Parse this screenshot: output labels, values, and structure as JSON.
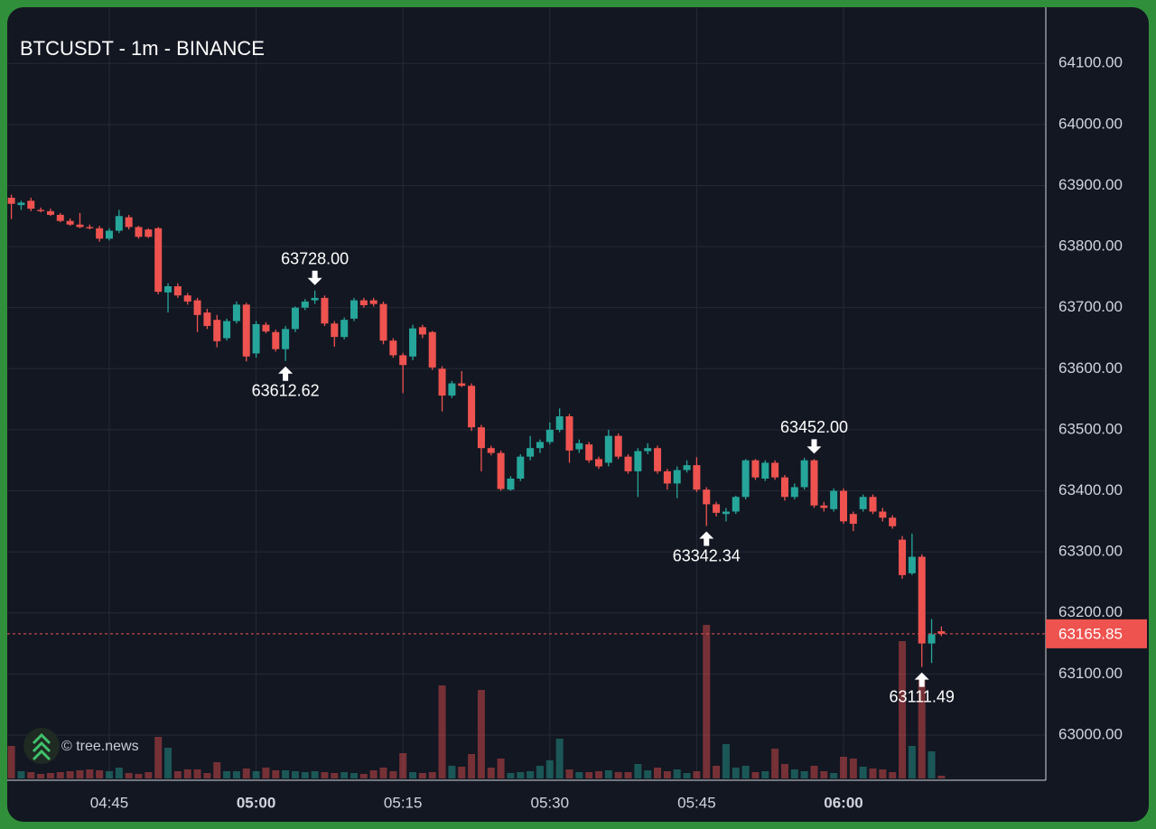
{
  "chart_data": {
    "type": "candlestick",
    "title": "BTCUSDT - 1m - BINANCE",
    "watermark": "© tree.news",
    "x": [
      "04:35",
      "04:36",
      "04:37",
      "04:38",
      "04:39",
      "04:40",
      "04:41",
      "04:42",
      "04:43",
      "04:44",
      "04:45",
      "04:46",
      "04:47",
      "04:48",
      "04:49",
      "04:50",
      "04:51",
      "04:52",
      "04:53",
      "04:54",
      "04:55",
      "04:56",
      "04:57",
      "04:58",
      "04:59",
      "05:00",
      "05:01",
      "05:02",
      "05:03",
      "05:04",
      "05:05",
      "05:06",
      "05:07",
      "05:08",
      "05:09",
      "05:10",
      "05:11",
      "05:12",
      "05:13",
      "05:14",
      "05:15",
      "05:16",
      "05:17",
      "05:18",
      "05:19",
      "05:20",
      "05:21",
      "05:22",
      "05:23",
      "05:24",
      "05:25",
      "05:26",
      "05:27",
      "05:28",
      "05:29",
      "05:30",
      "05:31",
      "05:32",
      "05:33",
      "05:34",
      "05:35",
      "05:36",
      "05:37",
      "05:38",
      "05:39",
      "05:40",
      "05:41",
      "05:42",
      "05:43",
      "05:44",
      "05:45",
      "05:46",
      "05:47",
      "05:48",
      "05:49",
      "05:50",
      "05:51",
      "05:52",
      "05:53",
      "05:54",
      "05:55",
      "05:56",
      "05:57",
      "05:58",
      "05:59",
      "06:00",
      "06:01",
      "06:02",
      "06:03",
      "06:04",
      "06:05",
      "06:06",
      "06:07",
      "06:08",
      "06:09",
      "06:10"
    ],
    "open": [
      63880,
      63868,
      63875,
      63860,
      63858,
      63852,
      63842,
      63836,
      63832,
      63830,
      63813,
      63826,
      63848,
      63832,
      63828,
      63830,
      63725,
      63735,
      63720,
      63712,
      63692,
      63680,
      63650,
      63678,
      63705,
      63625,
      63672,
      63660,
      63632,
      63665,
      63700,
      63712,
      63716,
      63674,
      63652,
      63682,
      63712,
      63712,
      63706,
      63646,
      63622,
      63620,
      63668,
      63660,
      63600,
      63556,
      63576,
      63572,
      63504,
      63470,
      63462,
      63402,
      63420,
      63456,
      63470,
      63480,
      63500,
      63522,
      63468,
      63476,
      63452,
      63446,
      63490,
      63456,
      63432,
      63465,
      63470,
      63432,
      63412,
      63434,
      63442,
      63402,
      63378,
      63362,
      63366,
      63390,
      63450,
      63420,
      63446,
      63422,
      63390,
      63406,
      63450,
      63376,
      63370,
      63400,
      63362,
      63370,
      63390,
      63366,
      63356,
      63320,
      63265,
      63292,
      63150,
      63170
    ],
    "high": [
      63885,
      63875,
      63880,
      63864,
      63862,
      63855,
      63846,
      63855,
      63836,
      63834,
      63830,
      63860,
      63852,
      63834,
      63830,
      63832,
      63740,
      63740,
      63724,
      63716,
      63698,
      63688,
      63682,
      63710,
      63708,
      63678,
      63676,
      63664,
      63670,
      63702,
      63714,
      63728,
      63720,
      63678,
      63684,
      63716,
      63716,
      63716,
      63710,
      63650,
      63626,
      63672,
      63672,
      63662,
      63604,
      63580,
      63596,
      63576,
      63508,
      63474,
      63466,
      63424,
      63460,
      63490,
      63484,
      63512,
      63535,
      63526,
      63484,
      63480,
      63456,
      63500,
      63494,
      63460,
      63470,
      63478,
      63474,
      63436,
      63440,
      63450,
      63455,
      63406,
      63382,
      63372,
      63392,
      63452,
      63452,
      63450,
      63450,
      63426,
      63412,
      63454,
      63452,
      63382,
      63404,
      63404,
      63366,
      63394,
      63394,
      63372,
      63360,
      63326,
      63330,
      63296,
      63190,
      63178
    ],
    "low": [
      63845,
      63860,
      63858,
      63856,
      63850,
      63840,
      63834,
      63830,
      63828,
      63808,
      63810,
      63822,
      63828,
      63813,
      63814,
      63722,
      63692,
      63716,
      63705,
      63660,
      63665,
      63635,
      63646,
      63674,
      63612,
      63618,
      63658,
      63628,
      63612.62,
      63660,
      63696,
      63706,
      63670,
      63636,
      63648,
      63678,
      63700,
      63702,
      63640,
      63618,
      63560,
      63614,
      63650,
      63598,
      63530,
      63552,
      63570,
      63498,
      63432,
      63458,
      63400,
      63400,
      63416,
      63450,
      63462,
      63476,
      63496,
      63446,
      63462,
      63446,
      63436,
      63440,
      63452,
      63428,
      63390,
      63460,
      63428,
      63402,
      63388,
      63430,
      63398,
      63342.34,
      63358,
      63350,
      63362,
      63386,
      63418,
      63416,
      63418,
      63384,
      63386,
      63402,
      63372,
      63366,
      63366,
      63346,
      63334,
      63366,
      63362,
      63350,
      63338,
      63256,
      63262,
      63111.49,
      63118,
      63162
    ],
    "close": [
      63870,
      63872,
      63862,
      63858,
      63852,
      63842,
      63836,
      63832,
      63830,
      63813,
      63826,
      63850,
      63832,
      63816,
      63816,
      63726,
      63735,
      63720,
      63710,
      63688,
      63670,
      63645,
      63678,
      63705,
      63620,
      63673,
      63661,
      63632,
      63665,
      63700,
      63710,
      63716,
      63674,
      63652,
      63680,
      63712,
      63704,
      63706,
      63646,
      63622,
      63606,
      63666,
      63656,
      63602,
      63556,
      63576,
      63572,
      63504,
      63470,
      63462,
      63403,
      63420,
      63456,
      63470,
      63480,
      63500,
      63522,
      63466,
      63478,
      63450,
      63440,
      63490,
      63456,
      63432,
      63465,
      63470,
      63432,
      63412,
      63434,
      63442,
      63402,
      63378,
      63364,
      63366,
      63390,
      63450,
      63422,
      63446,
      63422,
      63390,
      63406,
      63450,
      63376,
      63372,
      63400,
      63350,
      63346,
      63390,
      63366,
      63356,
      63342,
      63262,
      63292,
      63150,
      63165,
      63165.85
    ],
    "volume": [
      36,
      8,
      7,
      5,
      6,
      7,
      8,
      9,
      10,
      9,
      8,
      12,
      6,
      5,
      7,
      46,
      34,
      8,
      10,
      10,
      6,
      18,
      8,
      8,
      11,
      8,
      12,
      9,
      9,
      8,
      7,
      8,
      7,
      6,
      7,
      6,
      5,
      9,
      12,
      8,
      28,
      7,
      6,
      7,
      103,
      14,
      13,
      27,
      98,
      12,
      22,
      6,
      7,
      8,
      14,
      20,
      44,
      10,
      7,
      7,
      8,
      9,
      7,
      7,
      16,
      9,
      12,
      8,
      10,
      6,
      8,
      170,
      14,
      38,
      12,
      14,
      7,
      8,
      33,
      16,
      10,
      8,
      14,
      8,
      6,
      24,
      22,
      13,
      11,
      10,
      7,
      152,
      36,
      110,
      30,
      3
    ],
    "up_color": "#26a69a",
    "down_color": "#ef5350",
    "ylim": [
      62929,
      64192
    ],
    "y2lim": [
      0,
      200
    ],
    "yticks": [
      {
        "value": 63000,
        "label": "63000.00"
      },
      {
        "value": 63100,
        "label": "63100.00"
      },
      {
        "value": 63200,
        "label": "63200.00"
      },
      {
        "value": 63300,
        "label": "63300.00"
      },
      {
        "value": 63400,
        "label": "63400.00"
      },
      {
        "value": 63500,
        "label": "63500.00"
      },
      {
        "value": 63600,
        "label": "63600.00"
      },
      {
        "value": 63700,
        "label": "63700.00"
      },
      {
        "value": 63800,
        "label": "63800.00"
      },
      {
        "value": 63900,
        "label": "63900.00"
      },
      {
        "value": 64000,
        "label": "64000.00"
      },
      {
        "value": 64100,
        "label": "64100.00"
      }
    ],
    "xticks": [
      "04:45",
      "05:00",
      "05:15",
      "05:30",
      "05:45",
      "06:00"
    ],
    "annotations": [
      {
        "x": "05:06",
        "value": 63728,
        "label": "63728.00"
      },
      {
        "x": "05:03",
        "value": 63612.62,
        "label": "63612.62"
      },
      {
        "x": "05:57",
        "value": 63452,
        "label": "63452.00"
      },
      {
        "x": "05:46",
        "value": 63342.34,
        "label": "63342.34"
      },
      {
        "x": "06:08",
        "value": 63111.49,
        "label": "63111.49"
      }
    ],
    "last_price": {
      "value": 63165.85,
      "label": "63165.85"
    },
    "grid": true
  }
}
